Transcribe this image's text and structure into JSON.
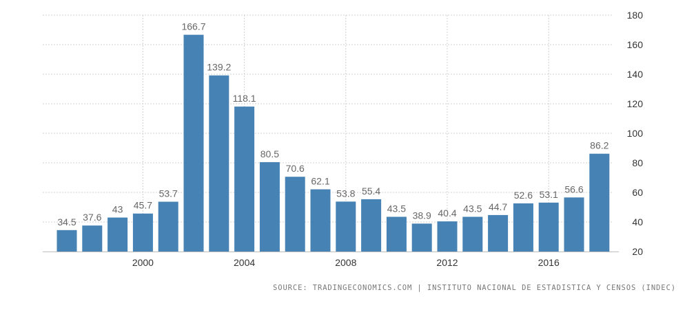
{
  "chart_data": {
    "type": "bar",
    "title": "",
    "xlabel": "",
    "ylabel": "",
    "categories": [
      "1997",
      "1998",
      "1999",
      "2000",
      "2001",
      "2002",
      "2003",
      "2004",
      "2005",
      "2006",
      "2007",
      "2008",
      "2009",
      "2010",
      "2011",
      "2012",
      "2013",
      "2014",
      "2015",
      "2016",
      "2017",
      "2018"
    ],
    "values": [
      34.5,
      37.6,
      43,
      45.7,
      53.7,
      166.7,
      139.2,
      118.1,
      80.5,
      70.6,
      62.1,
      53.8,
      55.4,
      43.5,
      38.9,
      40.4,
      43.5,
      44.7,
      52.6,
      53.1,
      56.6,
      86.2
    ],
    "data_labels": [
      "34.5",
      "37.6",
      "43",
      "45.7",
      "53.7",
      "166.7",
      "139.2",
      "118.1",
      "80.5",
      "70.6",
      "62.1",
      "53.8",
      "55.4",
      "43.5",
      "38.9",
      "40.4",
      "43.5",
      "44.7",
      "52.6",
      "53.1",
      "56.6",
      "86.2"
    ],
    "x_tick_labels": [
      "2000",
      "2004",
      "2008",
      "2012",
      "2016"
    ],
    "x_tick_years": [
      2000,
      2004,
      2008,
      2012,
      2016
    ],
    "y_tick_labels": [
      "20",
      "40",
      "60",
      "80",
      "100",
      "120",
      "140",
      "160",
      "180"
    ],
    "ylim": [
      20,
      180
    ],
    "y_axis_side": "right",
    "grid": true,
    "bar_color": "#4682b4",
    "grid_color": "#d0d0d0"
  },
  "source_text": "SOURCE: TRADINGECONOMICS.COM | INSTITUTO NACIONAL DE ESTADISTICA Y CENSOS (INDEC)"
}
